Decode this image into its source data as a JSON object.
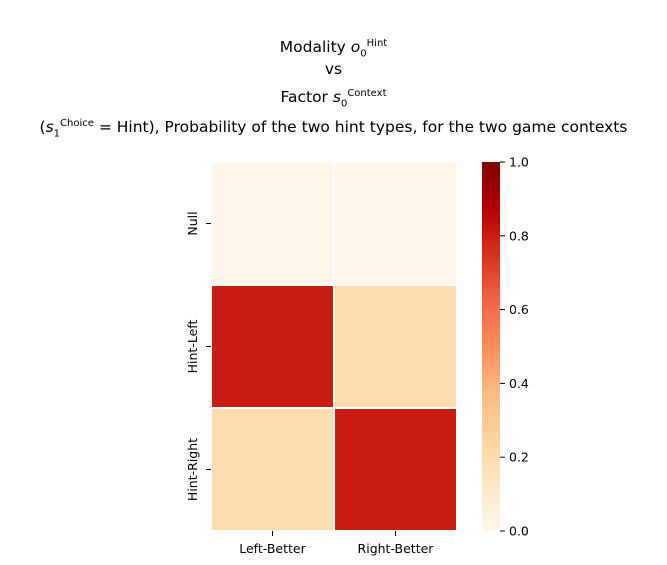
{
  "title": {
    "line1": {
      "prefix": "Modality ",
      "var": "o",
      "sub": "0",
      "sup": "Hint"
    },
    "line2": {
      "text": "vs"
    },
    "line3": {
      "prefix": "Factor ",
      "var": "s",
      "sub": "0",
      "sup": "Context"
    },
    "line4": {
      "open": "(",
      "var": "s",
      "sub": "1",
      "sup": "Choice",
      "eq": " = Hint), ",
      "rest": "Probability of the two hint types, for the two game contexts"
    }
  },
  "chart_data": {
    "type": "heatmap",
    "rows": [
      "Null",
      "Hint-Left",
      "Hint-Right"
    ],
    "columns": [
      "Left-Better",
      "Right-Better"
    ],
    "values": [
      [
        0.0,
        0.0
      ],
      [
        0.8,
        0.2
      ],
      [
        0.2,
        0.8
      ]
    ],
    "colormap": "OrRd",
    "colorbar": {
      "min": 0.0,
      "max": 1.0,
      "ticks": [
        "0.0",
        "0.2",
        "0.4",
        "0.6",
        "0.8",
        "1.0"
      ]
    },
    "grid": true
  }
}
